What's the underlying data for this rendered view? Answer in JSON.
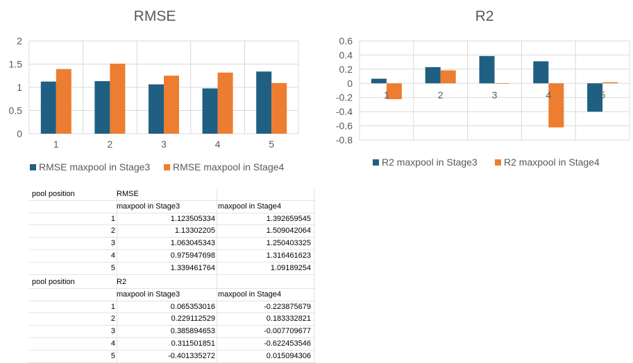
{
  "colors": {
    "stage3": "#1F5F82",
    "stage4": "#ED7D31",
    "grid": "#D9D9D9",
    "text": "#595959"
  },
  "chart_data": [
    {
      "type": "bar",
      "title": "RMSE",
      "categories": [
        "1",
        "2",
        "3",
        "4",
        "5"
      ],
      "series": [
        {
          "name": "RMSE maxpool in Stage3",
          "values": [
            1.123505334,
            1.13302205,
            1.063045343,
            0.975947698,
            1.339461764
          ]
        },
        {
          "name": "RMSE maxpool in Stage4",
          "values": [
            1.392659545,
            1.509042064,
            1.250403325,
            1.316461623,
            1.09189254
          ]
        }
      ],
      "ylim": [
        0,
        2
      ],
      "yticks": [
        "0",
        "0.5",
        "1",
        "1.5",
        "2"
      ],
      "ytick_values": [
        0,
        0.5,
        1,
        1.5,
        2
      ],
      "grid": true,
      "legend": "bottom"
    },
    {
      "type": "bar",
      "title": "R2",
      "categories": [
        "1",
        "2",
        "3",
        "4",
        "5"
      ],
      "series": [
        {
          "name": "R2 maxpool in Stage3",
          "values": [
            0.065353016,
            0.229112529,
            0.385894653,
            0.311501851,
            -0.401335272
          ]
        },
        {
          "name": "R2 maxpool in Stage4",
          "values": [
            -0.223875679,
            0.183332821,
            -0.007709677,
            -0.622453546,
            0.015094306
          ]
        }
      ],
      "ylim": [
        -0.8,
        0.6
      ],
      "yticks": [
        "0.6",
        "0.4",
        "0.2",
        "0",
        "-0.2",
        "-0.4",
        "-0.6",
        "-0.8"
      ],
      "ytick_values": [
        0.6,
        0.4,
        0.2,
        0,
        -0.2,
        -0.4,
        -0.6,
        -0.8
      ],
      "grid": true,
      "legend": "bottom"
    }
  ],
  "table_rmse": {
    "col1_header": "pool position",
    "col2_header": "RMSE",
    "sub2": "maxpool in Stage3",
    "sub3": "maxpool in Stage4",
    "rows": [
      [
        "1",
        "1.123505334",
        "1.392659545"
      ],
      [
        "2",
        "1.13302205",
        "1.509042064"
      ],
      [
        "3",
        "1.063045343",
        "1.250403325"
      ],
      [
        "4",
        "0.975947698",
        "1.316461623"
      ],
      [
        "5",
        "1.339461764",
        "1.09189254"
      ]
    ]
  },
  "table_r2": {
    "col1_header": "pool position",
    "col2_header": "R2",
    "sub2": "maxpool in Stage3",
    "sub3": "maxpool in Stage4",
    "rows": [
      [
        "1",
        "0.065353016",
        "-0.223875679"
      ],
      [
        "2",
        "0.229112529",
        "0.183332821"
      ],
      [
        "3",
        "0.385894653",
        "-0.007709677"
      ],
      [
        "4",
        "0.311501851",
        "-0.622453546"
      ],
      [
        "5",
        "-0.401335272",
        "0.015094306"
      ]
    ]
  }
}
